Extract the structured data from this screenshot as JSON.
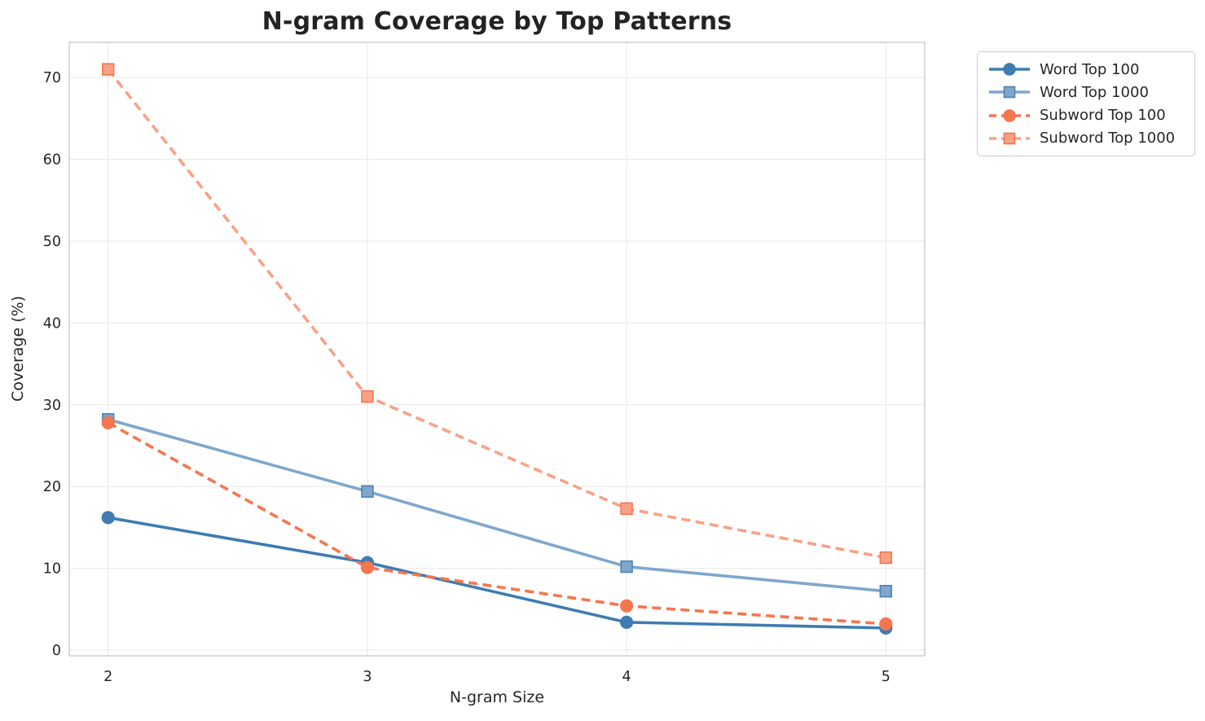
{
  "chart_data": {
    "type": "line",
    "title": "N-gram Coverage by Top Patterns",
    "xlabel": "N-gram Size",
    "ylabel": "Coverage (%)",
    "x": [
      2,
      3,
      4,
      5
    ],
    "x_ticks": [
      "2",
      "3",
      "4",
      "5"
    ],
    "y_ticks": [
      "0",
      "10",
      "20",
      "30",
      "40",
      "50",
      "60",
      "70"
    ],
    "y_tick_values": [
      0,
      10,
      20,
      30,
      40,
      50,
      60,
      70
    ],
    "xlim": [
      1.85,
      5.15
    ],
    "ylim": [
      -0.7,
      74.3
    ],
    "grid": true,
    "legend_position": "outside-top-right",
    "series": [
      {
        "name": "Word Top 100",
        "values": [
          16.2,
          10.7,
          3.4,
          2.7
        ],
        "color": "#3E7CB1",
        "marker_edge": "#3E7CB1",
        "line_style": "solid",
        "marker": "circle"
      },
      {
        "name": "Word Top 1000",
        "values": [
          28.2,
          19.4,
          10.2,
          7.2
        ],
        "color": "#7FA7CD",
        "marker_edge": "#4D80B2",
        "line_style": "solid",
        "marker": "square"
      },
      {
        "name": "Subword Top 100",
        "values": [
          27.8,
          10.1,
          5.4,
          3.2
        ],
        "color": "#F4764E",
        "marker_edge": "#F4764E",
        "line_style": "dashed",
        "marker": "circle"
      },
      {
        "name": "Subword Top 1000",
        "values": [
          71.0,
          31.0,
          17.3,
          11.3
        ],
        "color": "#F9A185",
        "marker_edge": "#F4764E",
        "line_style": "dashed",
        "marker": "square"
      }
    ],
    "style": {
      "grid_color": "#EBEBEB",
      "spine_color": "#CBCBCB",
      "text_color": "#262626",
      "background": "#FFFFFF",
      "line_width": 3.6,
      "dash_pattern": "11,6.5"
    }
  }
}
